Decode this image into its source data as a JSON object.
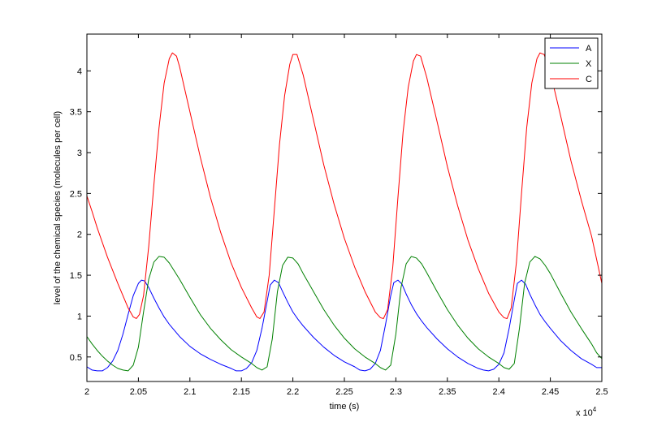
{
  "chart_data": {
    "type": "line",
    "xlabel": "time (s)",
    "ylabel": "level of the chemical species (molecules per cell)",
    "x_multiplier": {
      "base": "x 10",
      "exponent": "4"
    },
    "xlim": [
      2.0,
      2.5
    ],
    "ylim": [
      0.2,
      4.45
    ],
    "x_ticks": [
      2.0,
      2.05,
      2.1,
      2.15,
      2.2,
      2.25,
      2.3,
      2.35,
      2.4,
      2.45,
      2.5
    ],
    "x_tick_labels": [
      "2",
      "2.05",
      "2.1",
      "2.15",
      "2.2",
      "2.25",
      "2.3",
      "2.35",
      "2.4",
      "2.45",
      "2.5"
    ],
    "y_ticks": [
      0.5,
      1,
      1.5,
      2,
      2.5,
      3,
      3.5,
      4
    ],
    "y_tick_labels": [
      "0.5",
      "1",
      "1.5",
      "2",
      "2.5",
      "3",
      "3.5",
      "4"
    ],
    "grid": false,
    "legend_position": "top-right",
    "series": [
      {
        "name": "A",
        "color": "#0000ff",
        "points": [
          [
            2.0,
            0.38
          ],
          [
            2.005,
            0.34
          ],
          [
            2.01,
            0.33
          ],
          [
            2.015,
            0.33
          ],
          [
            2.02,
            0.37
          ],
          [
            2.025,
            0.45
          ],
          [
            2.03,
            0.58
          ],
          [
            2.035,
            0.78
          ],
          [
            2.04,
            1.02
          ],
          [
            2.045,
            1.25
          ],
          [
            2.05,
            1.4
          ],
          [
            2.053,
            1.44
          ],
          [
            2.056,
            1.43
          ],
          [
            2.06,
            1.35
          ],
          [
            2.065,
            1.22
          ],
          [
            2.07,
            1.1
          ],
          [
            2.075,
            0.99
          ],
          [
            2.08,
            0.9
          ],
          [
            2.09,
            0.75
          ],
          [
            2.1,
            0.63
          ],
          [
            2.11,
            0.54
          ],
          [
            2.12,
            0.47
          ],
          [
            2.13,
            0.41
          ],
          [
            2.14,
            0.36
          ],
          [
            2.145,
            0.33
          ],
          [
            2.15,
            0.33
          ],
          [
            2.155,
            0.36
          ],
          [
            2.16,
            0.43
          ],
          [
            2.165,
            0.58
          ],
          [
            2.17,
            0.85
          ],
          [
            2.175,
            1.18
          ],
          [
            2.178,
            1.38
          ],
          [
            2.182,
            1.44
          ],
          [
            2.186,
            1.41
          ],
          [
            2.19,
            1.3
          ],
          [
            2.195,
            1.17
          ],
          [
            2.2,
            1.05
          ],
          [
            2.205,
            0.96
          ],
          [
            2.21,
            0.88
          ],
          [
            2.22,
            0.74
          ],
          [
            2.23,
            0.62
          ],
          [
            2.24,
            0.52
          ],
          [
            2.25,
            0.44
          ],
          [
            2.26,
            0.38
          ],
          [
            2.265,
            0.34
          ],
          [
            2.27,
            0.33
          ],
          [
            2.275,
            0.35
          ],
          [
            2.28,
            0.42
          ],
          [
            2.285,
            0.58
          ],
          [
            2.29,
            0.9
          ],
          [
            2.295,
            1.25
          ],
          [
            2.298,
            1.41
          ],
          [
            2.302,
            1.44
          ],
          [
            2.306,
            1.39
          ],
          [
            2.31,
            1.27
          ],
          [
            2.315,
            1.14
          ],
          [
            2.32,
            1.03
          ],
          [
            2.325,
            0.94
          ],
          [
            2.33,
            0.86
          ],
          [
            2.34,
            0.72
          ],
          [
            2.35,
            0.6
          ],
          [
            2.36,
            0.5
          ],
          [
            2.37,
            0.42
          ],
          [
            2.38,
            0.36
          ],
          [
            2.385,
            0.34
          ],
          [
            2.39,
            0.33
          ],
          [
            2.395,
            0.35
          ],
          [
            2.4,
            0.41
          ],
          [
            2.405,
            0.55
          ],
          [
            2.41,
            0.85
          ],
          [
            2.415,
            1.2
          ],
          [
            2.418,
            1.4
          ],
          [
            2.422,
            1.44
          ],
          [
            2.426,
            1.39
          ],
          [
            2.43,
            1.27
          ],
          [
            2.435,
            1.14
          ],
          [
            2.44,
            1.02
          ],
          [
            2.445,
            0.93
          ],
          [
            2.45,
            0.85
          ],
          [
            2.46,
            0.7
          ],
          [
            2.47,
            0.58
          ],
          [
            2.48,
            0.48
          ],
          [
            2.49,
            0.41
          ],
          [
            2.495,
            0.37
          ],
          [
            2.5,
            0.37
          ]
        ]
      },
      {
        "name": "X",
        "color": "#008000",
        "points": [
          [
            2.0,
            0.75
          ],
          [
            2.005,
            0.66
          ],
          [
            2.01,
            0.58
          ],
          [
            2.015,
            0.51
          ],
          [
            2.02,
            0.45
          ],
          [
            2.025,
            0.4
          ],
          [
            2.03,
            0.36
          ],
          [
            2.035,
            0.34
          ],
          [
            2.04,
            0.33
          ],
          [
            2.045,
            0.4
          ],
          [
            2.05,
            0.62
          ],
          [
            2.055,
            1.05
          ],
          [
            2.06,
            1.45
          ],
          [
            2.065,
            1.66
          ],
          [
            2.07,
            1.73
          ],
          [
            2.075,
            1.72
          ],
          [
            2.08,
            1.65
          ],
          [
            2.09,
            1.45
          ],
          [
            2.1,
            1.23
          ],
          [
            2.11,
            1.02
          ],
          [
            2.12,
            0.85
          ],
          [
            2.13,
            0.71
          ],
          [
            2.14,
            0.59
          ],
          [
            2.15,
            0.5
          ],
          [
            2.16,
            0.42
          ],
          [
            2.165,
            0.37
          ],
          [
            2.17,
            0.34
          ],
          [
            2.175,
            0.38
          ],
          [
            2.18,
            0.72
          ],
          [
            2.185,
            1.3
          ],
          [
            2.19,
            1.62
          ],
          [
            2.195,
            1.72
          ],
          [
            2.2,
            1.71
          ],
          [
            2.205,
            1.64
          ],
          [
            2.21,
            1.52
          ],
          [
            2.22,
            1.3
          ],
          [
            2.23,
            1.08
          ],
          [
            2.24,
            0.89
          ],
          [
            2.25,
            0.73
          ],
          [
            2.26,
            0.6
          ],
          [
            2.27,
            0.5
          ],
          [
            2.28,
            0.42
          ],
          [
            2.285,
            0.37
          ],
          [
            2.29,
            0.34
          ],
          [
            2.295,
            0.4
          ],
          [
            2.3,
            0.78
          ],
          [
            2.305,
            1.35
          ],
          [
            2.31,
            1.64
          ],
          [
            2.315,
            1.73
          ],
          [
            2.32,
            1.71
          ],
          [
            2.325,
            1.64
          ],
          [
            2.33,
            1.53
          ],
          [
            2.34,
            1.3
          ],
          [
            2.35,
            1.08
          ],
          [
            2.36,
            0.89
          ],
          [
            2.37,
            0.73
          ],
          [
            2.38,
            0.6
          ],
          [
            2.39,
            0.5
          ],
          [
            2.4,
            0.42
          ],
          [
            2.405,
            0.37
          ],
          [
            2.41,
            0.35
          ],
          [
            2.415,
            0.42
          ],
          [
            2.42,
            0.85
          ],
          [
            2.425,
            1.4
          ],
          [
            2.43,
            1.66
          ],
          [
            2.435,
            1.73
          ],
          [
            2.44,
            1.7
          ],
          [
            2.445,
            1.62
          ],
          [
            2.45,
            1.52
          ],
          [
            2.46,
            1.28
          ],
          [
            2.47,
            1.05
          ],
          [
            2.48,
            0.85
          ],
          [
            2.49,
            0.66
          ],
          [
            2.495,
            0.55
          ],
          [
            2.5,
            0.48
          ]
        ]
      },
      {
        "name": "C",
        "color": "#ff0000",
        "points": [
          [
            2.0,
            2.47
          ],
          [
            2.005,
            2.28
          ],
          [
            2.01,
            2.08
          ],
          [
            2.02,
            1.72
          ],
          [
            2.03,
            1.4
          ],
          [
            2.04,
            1.1
          ],
          [
            2.045,
            0.99
          ],
          [
            2.048,
            0.97
          ],
          [
            2.051,
            1.02
          ],
          [
            2.055,
            1.25
          ],
          [
            2.06,
            1.85
          ],
          [
            2.065,
            2.6
          ],
          [
            2.07,
            3.3
          ],
          [
            2.075,
            3.85
          ],
          [
            2.08,
            4.15
          ],
          [
            2.083,
            4.22
          ],
          [
            2.087,
            4.18
          ],
          [
            2.09,
            4.05
          ],
          [
            2.1,
            3.5
          ],
          [
            2.11,
            2.95
          ],
          [
            2.12,
            2.45
          ],
          [
            2.13,
            2.02
          ],
          [
            2.14,
            1.65
          ],
          [
            2.15,
            1.35
          ],
          [
            2.16,
            1.1
          ],
          [
            2.165,
            0.99
          ],
          [
            2.168,
            0.97
          ],
          [
            2.172,
            1.05
          ],
          [
            2.177,
            1.5
          ],
          [
            2.182,
            2.3
          ],
          [
            2.187,
            3.1
          ],
          [
            2.192,
            3.7
          ],
          [
            2.197,
            4.08
          ],
          [
            2.2,
            4.2
          ],
          [
            2.204,
            4.2
          ],
          [
            2.21,
            3.95
          ],
          [
            2.22,
            3.4
          ],
          [
            2.23,
            2.85
          ],
          [
            2.24,
            2.37
          ],
          [
            2.25,
            1.95
          ],
          [
            2.26,
            1.6
          ],
          [
            2.27,
            1.3
          ],
          [
            2.28,
            1.05
          ],
          [
            2.285,
            0.98
          ],
          [
            2.288,
            0.97
          ],
          [
            2.292,
            1.08
          ],
          [
            2.297,
            1.6
          ],
          [
            2.302,
            2.45
          ],
          [
            2.307,
            3.25
          ],
          [
            2.312,
            3.8
          ],
          [
            2.317,
            4.12
          ],
          [
            2.32,
            4.2
          ],
          [
            2.324,
            4.18
          ],
          [
            2.33,
            3.92
          ],
          [
            2.34,
            3.38
          ],
          [
            2.35,
            2.83
          ],
          [
            2.36,
            2.35
          ],
          [
            2.37,
            1.93
          ],
          [
            2.38,
            1.58
          ],
          [
            2.39,
            1.28
          ],
          [
            2.4,
            1.05
          ],
          [
            2.405,
            0.98
          ],
          [
            2.408,
            0.97
          ],
          [
            2.412,
            1.1
          ],
          [
            2.417,
            1.65
          ],
          [
            2.422,
            2.5
          ],
          [
            2.427,
            3.3
          ],
          [
            2.432,
            3.85
          ],
          [
            2.437,
            4.15
          ],
          [
            2.44,
            4.22
          ],
          [
            2.444,
            4.2
          ],
          [
            2.45,
            3.98
          ],
          [
            2.46,
            3.45
          ],
          [
            2.47,
            2.9
          ],
          [
            2.48,
            2.42
          ],
          [
            2.49,
            1.98
          ],
          [
            2.5,
            1.4
          ]
        ]
      }
    ]
  }
}
